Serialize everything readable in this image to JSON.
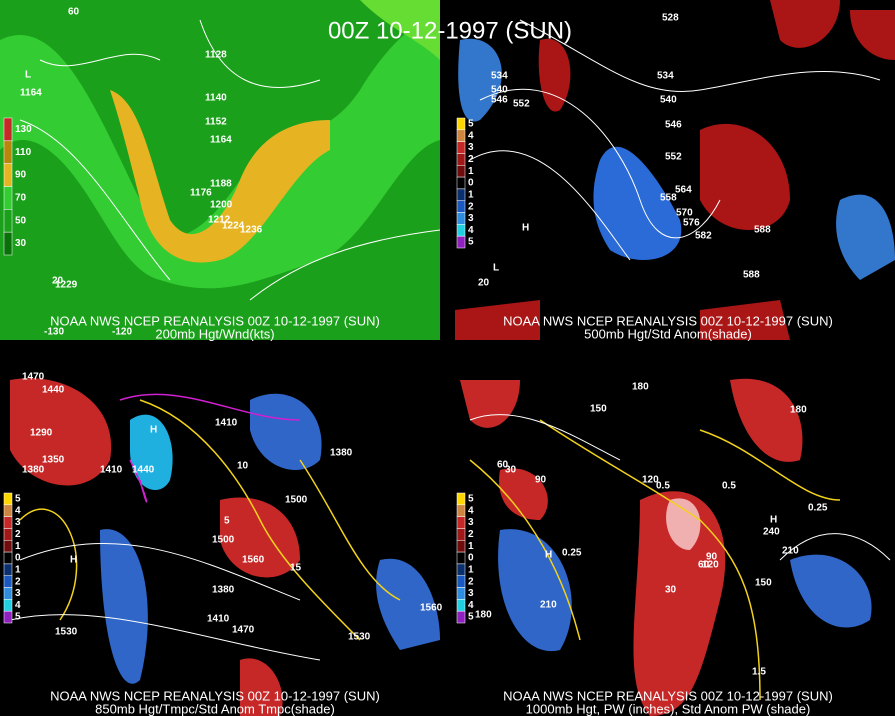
{
  "title": "00Z 10-12-1997 (SUN)",
  "panels": [
    {
      "caption": [
        "NOAA NWS NCEP REANALYSIS 00Z 10-12-1997 (SUN)",
        "200mb Hgt/Wnd(kts)"
      ],
      "colorbar": [
        "130",
        "110",
        "90",
        "70",
        "50",
        "30"
      ],
      "labels": [
        "60",
        "1128",
        "1140",
        "1152",
        "1164",
        "1176",
        "1188",
        "1200",
        "1212",
        "1224",
        "1236",
        "1164",
        "L",
        "1229",
        "-130",
        "-120",
        "20"
      ]
    },
    {
      "caption": [
        "NOAA NWS NCEP REANALYSIS 00Z 10-12-1997 (SUN)",
        "500mb Hgt/Std Anom(shade)"
      ],
      "colorbar": [
        "5",
        "4",
        "3",
        "2",
        "1",
        "0",
        "1",
        "2",
        "3",
        "4",
        "5"
      ],
      "labels": [
        "528",
        "534",
        "540",
        "546",
        "552",
        "534",
        "540",
        "546",
        "552",
        "558",
        "564",
        "570",
        "576",
        "582",
        "588",
        "588",
        "H",
        "L",
        "20"
      ]
    },
    {
      "caption": [
        "NOAA NWS NCEP REANALYSIS 00Z 10-12-1997 (SUN)",
        "850mb Hgt/Tmpc/Std Anom Tmpc(shade)"
      ],
      "colorbar": [
        "5",
        "4",
        "3",
        "2",
        "1",
        "0",
        "1",
        "2",
        "3",
        "4",
        "5"
      ],
      "labels": [
        "1470",
        "1440",
        "1410",
        "1380",
        "1350",
        "1290",
        "1440",
        "1410",
        "1380",
        "1500",
        "1560",
        "1530",
        "1560",
        "1530",
        "1500",
        "1410",
        "1470",
        "1380",
        "H",
        "H",
        "10",
        "5",
        "15"
      ]
    },
    {
      "caption": [
        "NOAA NWS NCEP REANALYSIS 00Z 10-12-1997 (SUN)",
        "1000mb Hgt, PW (inches), Std Anom PW (shade)"
      ],
      "colorbar": [
        "5",
        "4",
        "3",
        "2",
        "1",
        "0",
        "1",
        "2",
        "3",
        "4",
        "5"
      ],
      "labels": [
        "180",
        "150",
        "120",
        "90",
        "60",
        "30",
        "0.25",
        "0.5",
        "0.25",
        "210",
        "240",
        "180",
        "210",
        "180",
        "150",
        "120",
        "90",
        "60",
        "30",
        "0.5",
        "H",
        "H",
        "1.5"
      ]
    }
  ]
}
